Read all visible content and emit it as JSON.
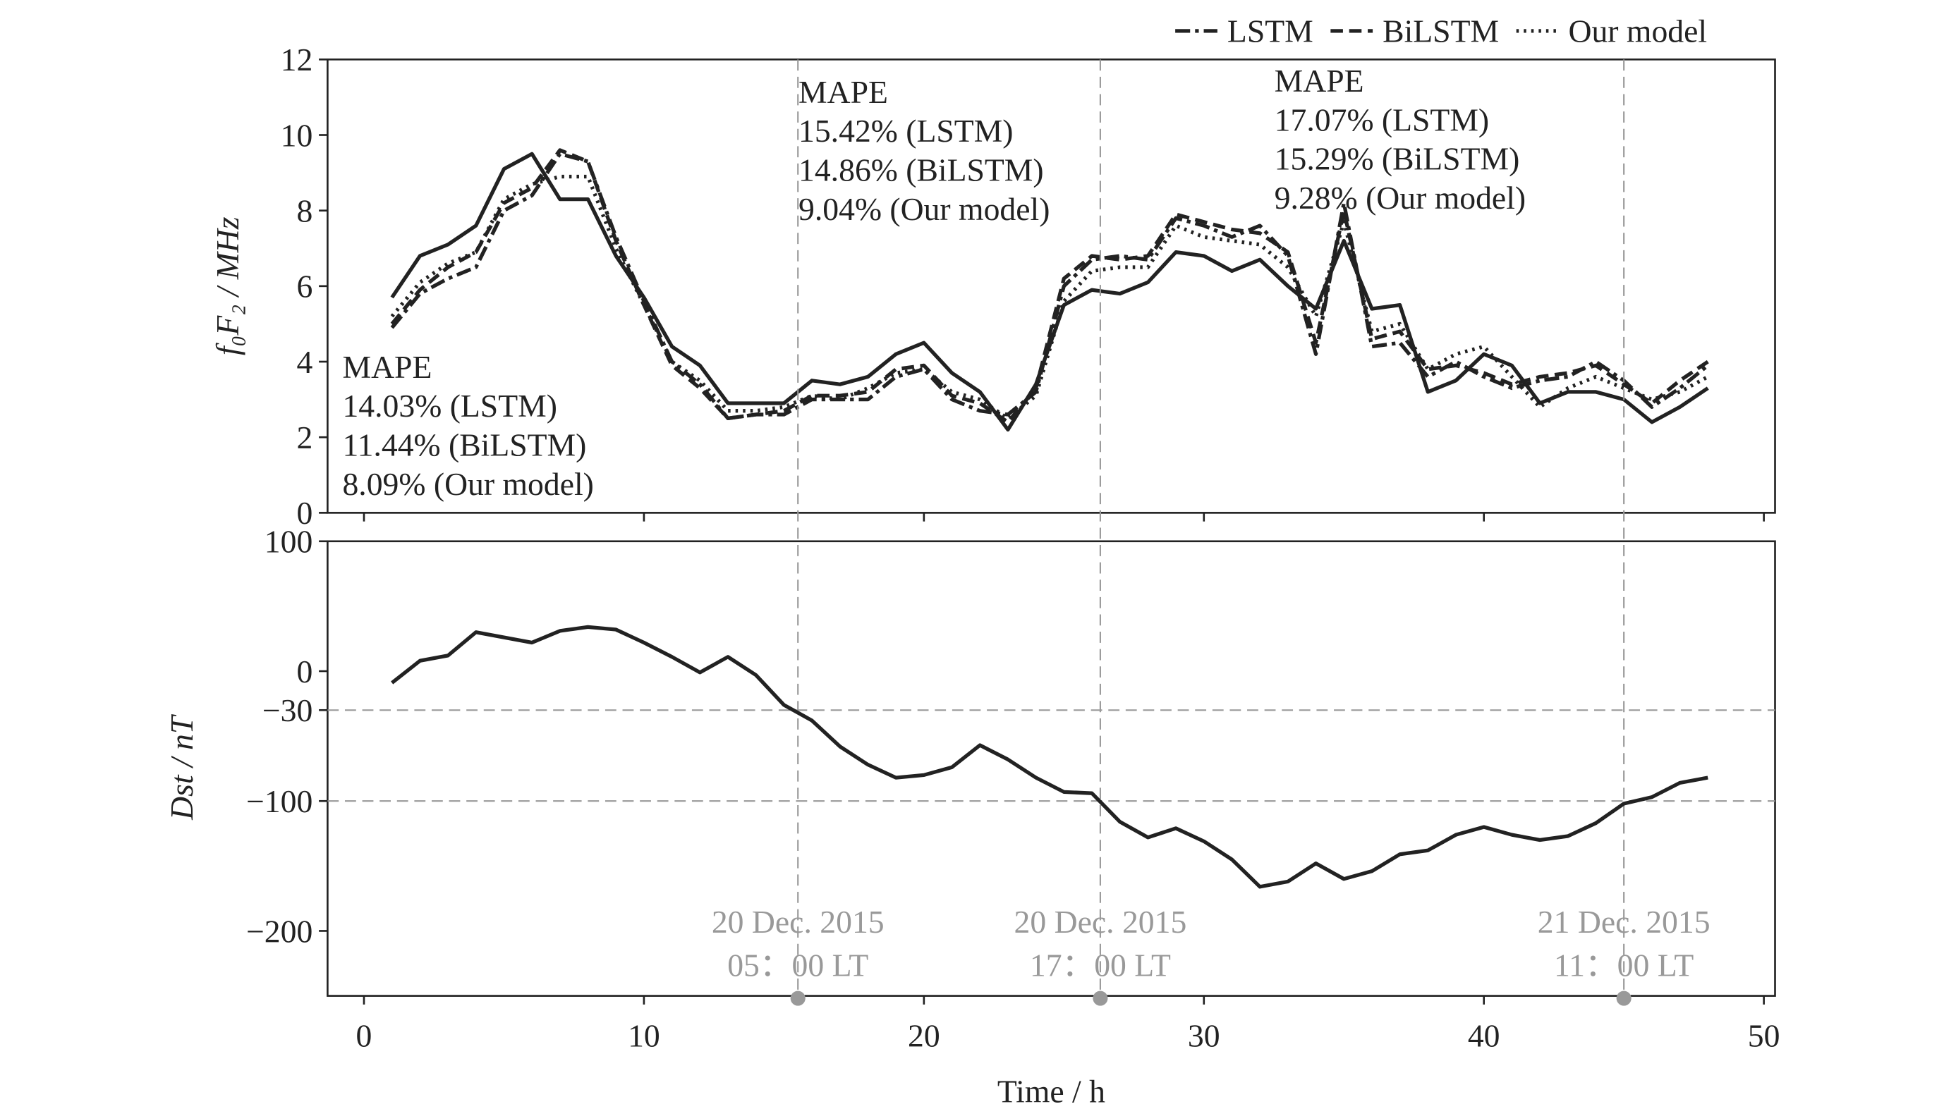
{
  "chart_data": [
    {
      "type": "line",
      "y_label": "f₀F₂ / MHz",
      "x": [
        1,
        2,
        3,
        4,
        5,
        6,
        7,
        8,
        9,
        10,
        11,
        12,
        13,
        14,
        15,
        16,
        17,
        18,
        19,
        20,
        21,
        22,
        23,
        24,
        25,
        26,
        27,
        28,
        29,
        30,
        31,
        32,
        33,
        34,
        35,
        36,
        37,
        38,
        39,
        40,
        41,
        42,
        43,
        44,
        45,
        46,
        47,
        48
      ],
      "xlim": [
        -1.3,
        50.4
      ],
      "ylim": [
        0,
        12
      ],
      "yticks": [
        0,
        2,
        4,
        6,
        8,
        10,
        12
      ],
      "series": [
        {
          "color": "#222222",
          "dash": "solid",
          "values": [
            5.7,
            6.8,
            7.1,
            7.6,
            9.1,
            9.5,
            8.3,
            8.3,
            6.8,
            5.7,
            4.4,
            3.9,
            2.9,
            2.9,
            2.9,
            3.5,
            3.4,
            3.6,
            4.2,
            4.5,
            3.7,
            3.2,
            2.2,
            3.4,
            5.5,
            5.9,
            5.8,
            6.1,
            6.9,
            6.8,
            6.4,
            6.7,
            6.0,
            5.4,
            7.2,
            5.4,
            5.5,
            3.2,
            3.5,
            4.2,
            3.9,
            2.9,
            3.2,
            3.2,
            3.0,
            2.4,
            2.8,
            3.3
          ]
        },
        {
          "name": "LSTM",
          "color": "#222222",
          "dash": "dashdot",
          "values": [
            4.9,
            5.8,
            6.2,
            6.5,
            8.0,
            8.4,
            9.5,
            9.3,
            7.3,
            5.6,
            4.0,
            3.4,
            2.5,
            2.6,
            2.6,
            3.0,
            3.0,
            3.0,
            3.6,
            3.8,
            3.0,
            2.7,
            2.6,
            3.2,
            6.0,
            6.7,
            6.8,
            6.7,
            7.8,
            7.6,
            7.3,
            7.6,
            6.8,
            4.2,
            8.2,
            4.4,
            4.5,
            3.6,
            4.0,
            3.6,
            3.3,
            3.5,
            3.6,
            4.0,
            3.5,
            2.8,
            3.3,
            3.9
          ]
        },
        {
          "name": "BiLSTM",
          "color": "#222222",
          "dash": "dashed",
          "values": [
            5.0,
            5.9,
            6.5,
            6.9,
            8.2,
            8.6,
            9.6,
            9.3,
            7.2,
            5.5,
            3.9,
            3.3,
            2.5,
            2.6,
            2.7,
            3.1,
            3.1,
            3.2,
            3.8,
            3.9,
            3.1,
            2.9,
            2.4,
            3.3,
            6.2,
            6.8,
            6.7,
            6.8,
            7.9,
            7.7,
            7.5,
            7.4,
            6.9,
            4.5,
            8.0,
            4.6,
            4.8,
            3.8,
            3.9,
            3.7,
            3.4,
            3.6,
            3.7,
            3.9,
            3.4,
            2.9,
            3.5,
            4.0
          ]
        },
        {
          "name": "Our model",
          "color": "#222222",
          "dash": "dotted",
          "values": [
            5.2,
            6.1,
            6.6,
            6.9,
            8.3,
            8.7,
            8.9,
            8.9,
            7.0,
            5.5,
            4.0,
            3.5,
            2.7,
            2.7,
            2.8,
            3.1,
            3.0,
            3.3,
            3.7,
            3.8,
            3.2,
            3.0,
            2.5,
            3.1,
            5.6,
            6.4,
            6.5,
            6.5,
            7.6,
            7.3,
            7.2,
            7.1,
            6.5,
            5.2,
            7.7,
            4.8,
            5.0,
            3.8,
            4.2,
            4.4,
            3.6,
            2.8,
            3.3,
            3.6,
            3.3,
            3.0,
            3.2,
            3.6
          ]
        }
      ],
      "annotations": [
        {
          "lines": [
            "MAPE",
            "14.03% (LSTM)",
            "11.44% (BiLSTM)",
            "8.09% (Our model)"
          ]
        },
        {
          "lines": [
            "MAPE",
            "15.42% (LSTM)",
            "14.86% (BiLSTM)",
            "9.04% (Our model)"
          ]
        },
        {
          "lines": [
            "MAPE",
            "17.07% (LSTM)",
            "15.29% (BiLSTM)",
            "9.28% (Our model)"
          ]
        }
      ]
    },
    {
      "type": "line",
      "y_label": "Dst / nT",
      "x_label": "Time / h",
      "x": [
        1,
        2,
        3,
        4,
        5,
        6,
        7,
        8,
        9,
        10,
        11,
        12,
        13,
        14,
        15,
        16,
        17,
        18,
        19,
        20,
        21,
        22,
        23,
        24,
        25,
        26,
        27,
        28,
        29,
        30,
        31,
        32,
        33,
        34,
        35,
        36,
        37,
        38,
        39,
        40,
        41,
        42,
        43,
        44,
        45,
        46,
        47,
        48
      ],
      "values": [
        -9,
        8,
        12,
        30,
        26,
        22,
        31,
        34,
        32,
        22,
        11,
        -1,
        11,
        -3,
        -26,
        -38,
        -58,
        -72,
        -82,
        -80,
        -74,
        -57,
        -68,
        -82,
        -93,
        -94,
        -116,
        -128,
        -121,
        -131,
        -145,
        -166,
        -162,
        -148,
        -160,
        -154,
        -141,
        -138,
        -126,
        -120,
        -126,
        -130,
        -127,
        -117,
        -102,
        -97,
        -86,
        -82
      ],
      "color": "#222222",
      "xlim": [
        -1.3,
        50.4
      ],
      "xticks": [
        0,
        10,
        20,
        30,
        40,
        50
      ],
      "ylim": [
        -250,
        100
      ],
      "yticks": [
        {
          "value": -200,
          "label": "−200"
        },
        {
          "value": -100,
          "label": "−100"
        },
        {
          "value": -30,
          "label": "−30"
        },
        0,
        100
      ],
      "ref_lines": [
        -30,
        -100
      ],
      "events": [
        {
          "x": 15.5,
          "label": [
            "20 Dec. 2015",
            "05：00 LT"
          ]
        },
        {
          "x": 26.3,
          "label": [
            "20 Dec. 2015",
            "17：00 LT"
          ]
        },
        {
          "x": 45.0,
          "label": [
            "21 Dec. 2015",
            "11：00 LT"
          ]
        }
      ]
    }
  ]
}
